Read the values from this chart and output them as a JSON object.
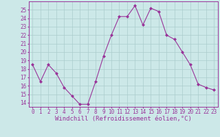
{
  "x": [
    0,
    1,
    2,
    3,
    4,
    5,
    6,
    7,
    8,
    9,
    10,
    11,
    12,
    13,
    14,
    15,
    16,
    17,
    18,
    19,
    20,
    21,
    22,
    23
  ],
  "y": [
    18.5,
    16.5,
    18.5,
    17.5,
    15.8,
    14.8,
    13.8,
    13.8,
    16.5,
    19.5,
    22.0,
    24.2,
    24.2,
    25.5,
    23.2,
    25.2,
    24.8,
    22.0,
    21.5,
    20.0,
    18.5,
    16.2,
    15.8,
    15.5
  ],
  "line_color": "#993399",
  "marker": "D",
  "marker_size": 2.0,
  "bg_color": "#cce8e8",
  "grid_color": "#aacccc",
  "xlabel": "Windchill (Refroidissement éolien,°C)",
  "ylim": [
    13.5,
    26
  ],
  "xlim": [
    -0.5,
    23.5
  ],
  "yticks": [
    14,
    15,
    16,
    17,
    18,
    19,
    20,
    21,
    22,
    23,
    24,
    25
  ],
  "xticks": [
    0,
    1,
    2,
    3,
    4,
    5,
    6,
    7,
    8,
    9,
    10,
    11,
    12,
    13,
    14,
    15,
    16,
    17,
    18,
    19,
    20,
    21,
    22,
    23
  ],
  "tick_label_size": 5.5,
  "xlabel_size": 6.5,
  "xlabel_color": "#993399",
  "tick_color": "#993399",
  "spine_color": "#993399",
  "line_width": 0.8
}
